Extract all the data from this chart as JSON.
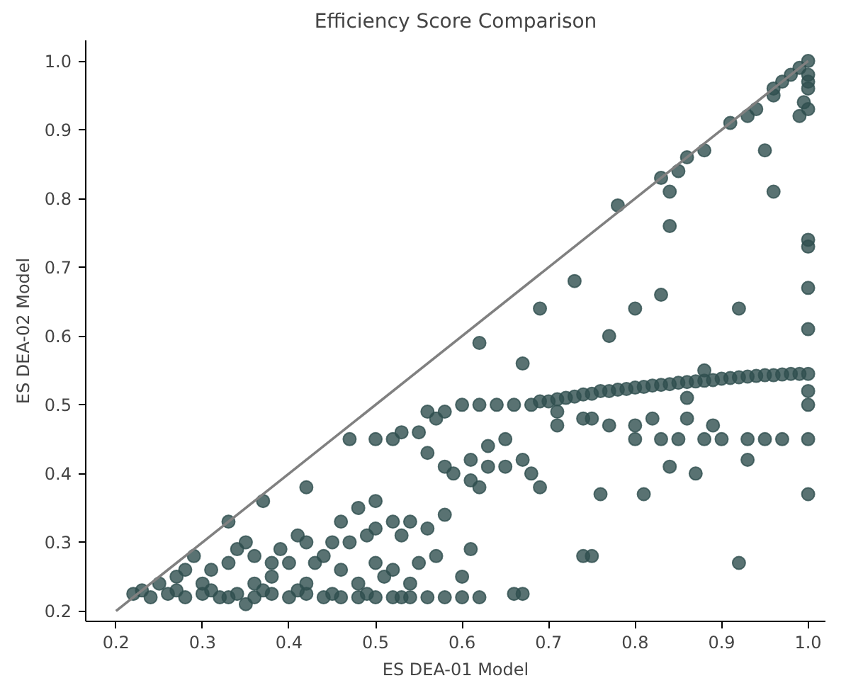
{
  "chart_data": {
    "type": "scatter",
    "title": "Efficiency Score Comparison",
    "xlabel": "ES DEA-01 Model",
    "ylabel": "ES DEA-02 Model",
    "xlim": [
      0.165,
      1.02
    ],
    "ylim": [
      0.185,
      1.03
    ],
    "xticks": [
      {
        "value": 0.2,
        "label": "0.2"
      },
      {
        "value": 0.3,
        "label": "0.3"
      },
      {
        "value": 0.4,
        "label": "0.4"
      },
      {
        "value": 0.5,
        "label": "0.5"
      },
      {
        "value": 0.6,
        "label": "0.6"
      },
      {
        "value": 0.7,
        "label": "0.7"
      },
      {
        "value": 0.8,
        "label": "0.8"
      },
      {
        "value": 0.9,
        "label": "0.9"
      },
      {
        "value": 1.0,
        "label": "1.0"
      }
    ],
    "yticks": [
      {
        "value": 0.2,
        "label": "0.2"
      },
      {
        "value": 0.3,
        "label": "0.3"
      },
      {
        "value": 0.4,
        "label": "0.4"
      },
      {
        "value": 0.5,
        "label": "0.5"
      },
      {
        "value": 0.6,
        "label": "0.6"
      },
      {
        "value": 0.7,
        "label": "0.7"
      },
      {
        "value": 0.8,
        "label": "0.8"
      },
      {
        "value": 0.9,
        "label": "0.9"
      },
      {
        "value": 1.0,
        "label": "1.0"
      }
    ],
    "grid": false,
    "marker": "circle",
    "series": [
      {
        "color": "#2f4f4f",
        "x": [
          1.0,
          0.99,
          0.98,
          0.97,
          0.96,
          1.0,
          1.0,
          1.0,
          0.995,
          1.0,
          0.99,
          0.96,
          0.94,
          0.93,
          0.91,
          0.86,
          0.88,
          0.85,
          0.83,
          0.84,
          0.95,
          0.96,
          0.84,
          0.78,
          1.0,
          1.0,
          1.0,
          1.0,
          0.92,
          0.8,
          0.83,
          0.73,
          0.69,
          0.77,
          0.62,
          0.67,
          0.5,
          0.47,
          0.42,
          0.37,
          0.33,
          0.68,
          0.7,
          0.72,
          0.74,
          0.76,
          0.78,
          0.8,
          0.82,
          0.84,
          0.86,
          0.88,
          0.9,
          0.92,
          0.94,
          0.96,
          0.98,
          1.0,
          0.69,
          0.71,
          0.73,
          0.75,
          0.77,
          0.79,
          0.81,
          0.83,
          0.85,
          0.87,
          0.89,
          0.91,
          0.93,
          0.95,
          0.97,
          0.99,
          0.71,
          0.75,
          0.8,
          0.8,
          0.83,
          0.85,
          0.88,
          0.9,
          0.93,
          0.95,
          0.97,
          1.0,
          0.71,
          0.74,
          0.77,
          0.82,
          0.86,
          0.89,
          0.84,
          0.87,
          0.93,
          0.76,
          0.81,
          1.0,
          0.74,
          0.75,
          0.92,
          1.0,
          1.0,
          0.88,
          0.86,
          0.6,
          0.62,
          0.64,
          0.66,
          0.58,
          0.56,
          0.57,
          0.53,
          0.52,
          0.55,
          0.56,
          0.63,
          0.65,
          0.61,
          0.63,
          0.65,
          0.67,
          0.59,
          0.61,
          0.62,
          0.69,
          0.68,
          0.58,
          0.48,
          0.5,
          0.46,
          0.5,
          0.52,
          0.54,
          0.49,
          0.53,
          0.56,
          0.58,
          0.44,
          0.47,
          0.45,
          0.42,
          0.41,
          0.39,
          0.4,
          0.38,
          0.36,
          0.34,
          0.33,
          0.31,
          0.29,
          0.28,
          0.27,
          0.25,
          0.35,
          0.43,
          0.46,
          0.5,
          0.52,
          0.55,
          0.57,
          0.51,
          0.54,
          0.61,
          0.6,
          0.38,
          0.36,
          0.3,
          0.42,
          0.48,
          0.22,
          0.24,
          0.26,
          0.28,
          0.3,
          0.32,
          0.34,
          0.36,
          0.38,
          0.4,
          0.42,
          0.44,
          0.46,
          0.48,
          0.5,
          0.52,
          0.54,
          0.56,
          0.58,
          0.6,
          0.62,
          0.66,
          0.67,
          0.35,
          0.23,
          0.27,
          0.31,
          0.33,
          0.37,
          0.41,
          0.45,
          0.49,
          0.53
        ],
        "values": [
          1.0,
          0.99,
          0.98,
          0.97,
          0.96,
          0.98,
          0.97,
          0.96,
          0.94,
          0.93,
          0.92,
          0.95,
          0.93,
          0.92,
          0.91,
          0.86,
          0.87,
          0.84,
          0.83,
          0.81,
          0.87,
          0.81,
          0.76,
          0.79,
          0.74,
          0.73,
          0.67,
          0.61,
          0.64,
          0.64,
          0.66,
          0.68,
          0.64,
          0.6,
          0.59,
          0.56,
          0.45,
          0.45,
          0.38,
          0.36,
          0.33,
          0.5,
          0.505,
          0.51,
          0.515,
          0.52,
          0.522,
          0.525,
          0.528,
          0.53,
          0.533,
          0.535,
          0.538,
          0.54,
          0.542,
          0.543,
          0.545,
          0.545,
          0.505,
          0.508,
          0.512,
          0.516,
          0.52,
          0.523,
          0.526,
          0.529,
          0.532,
          0.534,
          0.536,
          0.539,
          0.541,
          0.543,
          0.544,
          0.545,
          0.49,
          0.48,
          0.47,
          0.45,
          0.45,
          0.45,
          0.45,
          0.45,
          0.45,
          0.45,
          0.45,
          0.45,
          0.47,
          0.48,
          0.47,
          0.48,
          0.48,
          0.47,
          0.41,
          0.4,
          0.42,
          0.37,
          0.37,
          0.37,
          0.28,
          0.28,
          0.27,
          0.5,
          0.52,
          0.55,
          0.51,
          0.5,
          0.5,
          0.5,
          0.5,
          0.49,
          0.49,
          0.48,
          0.46,
          0.45,
          0.46,
          0.43,
          0.44,
          0.45,
          0.42,
          0.41,
          0.41,
          0.42,
          0.4,
          0.39,
          0.38,
          0.38,
          0.4,
          0.41,
          0.35,
          0.36,
          0.33,
          0.32,
          0.33,
          0.33,
          0.31,
          0.31,
          0.32,
          0.34,
          0.28,
          0.3,
          0.3,
          0.3,
          0.31,
          0.29,
          0.27,
          0.27,
          0.28,
          0.29,
          0.27,
          0.26,
          0.28,
          0.26,
          0.25,
          0.24,
          0.3,
          0.27,
          0.26,
          0.27,
          0.26,
          0.27,
          0.28,
          0.25,
          0.24,
          0.29,
          0.25,
          0.25,
          0.24,
          0.24,
          0.24,
          0.24,
          0.225,
          0.22,
          0.225,
          0.22,
          0.225,
          0.22,
          0.225,
          0.22,
          0.225,
          0.22,
          0.225,
          0.22,
          0.22,
          0.22,
          0.22,
          0.22,
          0.22,
          0.22,
          0.22,
          0.22,
          0.22,
          0.225,
          0.225,
          0.21,
          0.23,
          0.23,
          0.23,
          0.22,
          0.23,
          0.23,
          0.225,
          0.225,
          0.22
        ]
      },
      {
        "type": "line",
        "color": "#808080",
        "marker": "none",
        "x": [
          0.2,
          1.0
        ],
        "values": [
          0.2,
          1.0
        ]
      }
    ]
  }
}
